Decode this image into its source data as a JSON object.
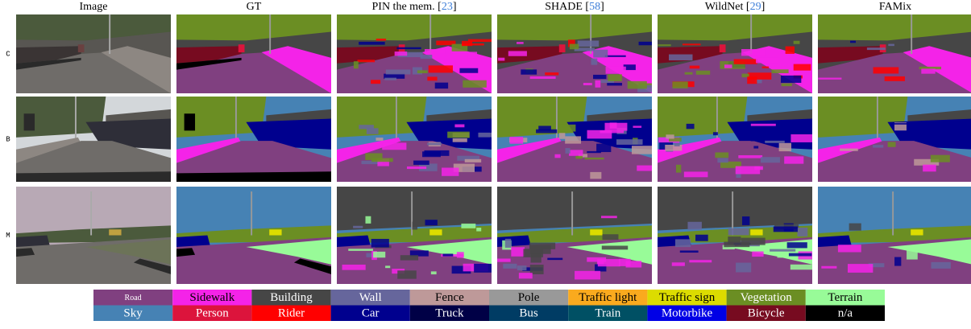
{
  "columns": [
    {
      "parts": [
        "Image"
      ]
    },
    {
      "parts": [
        "GT"
      ]
    },
    {
      "parts": [
        "PIN the mem. [",
        "23",
        "]"
      ]
    },
    {
      "parts": [
        "SHADE [",
        "58",
        "]"
      ]
    },
    {
      "parts": [
        "WildNet [",
        "29",
        "]"
      ]
    },
    {
      "parts": [
        "FAMix"
      ]
    }
  ],
  "rows": [
    "C",
    "B",
    "M"
  ],
  "legend": [
    {
      "label": "Road",
      "color": "#804080"
    },
    {
      "label": "Sidewalk",
      "color": "#f423e8"
    },
    {
      "label": "Building",
      "color": "#464646"
    },
    {
      "label": "Wall",
      "color": "#66669c"
    },
    {
      "label": "Fence",
      "color": "#be9999"
    },
    {
      "label": "Pole",
      "color": "#999999"
    },
    {
      "label": "Traffic light",
      "color": "#faaa1e"
    },
    {
      "label": "Traffic sign",
      "color": "#dcdc00"
    },
    {
      "label": "Vegetation",
      "color": "#6b8e23"
    },
    {
      "label": "Terrain",
      "color": "#98fb98"
    },
    {
      "label": "Sky",
      "color": "#4682b4"
    },
    {
      "label": "Person",
      "color": "#dc143c"
    },
    {
      "label": "Rider",
      "color": "#ff0000"
    },
    {
      "label": "Car",
      "color": "#00008e"
    },
    {
      "label": "Truck",
      "color": "#000046"
    },
    {
      "label": "Bus",
      "color": "#003c64"
    },
    {
      "label": "Train",
      "color": "#005064"
    },
    {
      "label": "Motorbike",
      "color": "#0000e6"
    },
    {
      "label": "Bicycle",
      "color": "#770b20"
    },
    {
      "label": "n/a",
      "color": "#000000"
    }
  ]
}
